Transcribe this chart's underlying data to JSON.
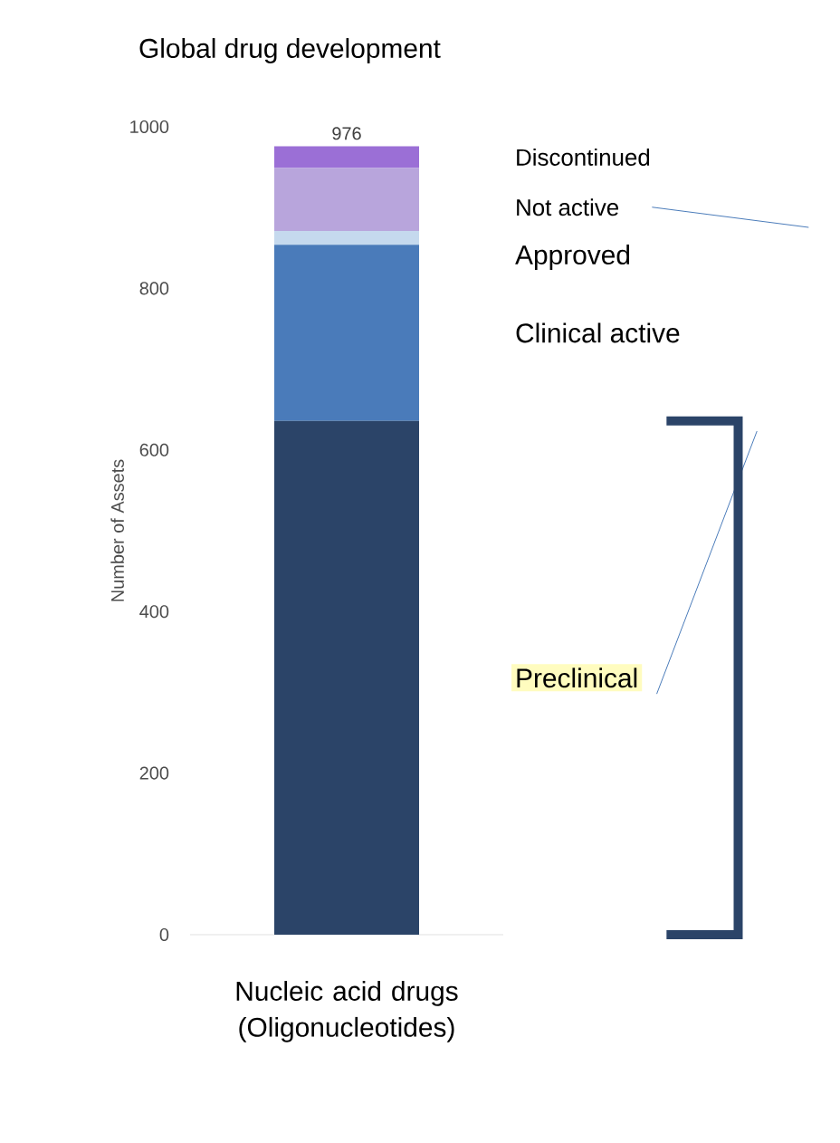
{
  "chart_data": {
    "type": "bar",
    "title": "Global drug development",
    "ylabel": "Number of Assets",
    "categories": [
      "Nucleic acid drugs (Oligonucleotides)"
    ],
    "stacked": true,
    "ylim": [
      0,
      1000
    ],
    "yticks": [
      0,
      200,
      400,
      600,
      800,
      1000
    ],
    "series": [
      {
        "name": "Preclinical",
        "color": "#2b4468",
        "values": [
          636
        ]
      },
      {
        "name": "Clinical active",
        "color": "#4a7bba",
        "values": [
          218
        ]
      },
      {
        "name": "Approved",
        "color": "#c5d9ee",
        "values": [
          17
        ]
      },
      {
        "name": "Not active",
        "color": "#b8a5dc",
        "values": [
          78
        ]
      },
      {
        "name": "Discontinued",
        "color": "#9b6fd6",
        "values": [
          27
        ]
      }
    ],
    "totals": [
      "976"
    ]
  }
}
